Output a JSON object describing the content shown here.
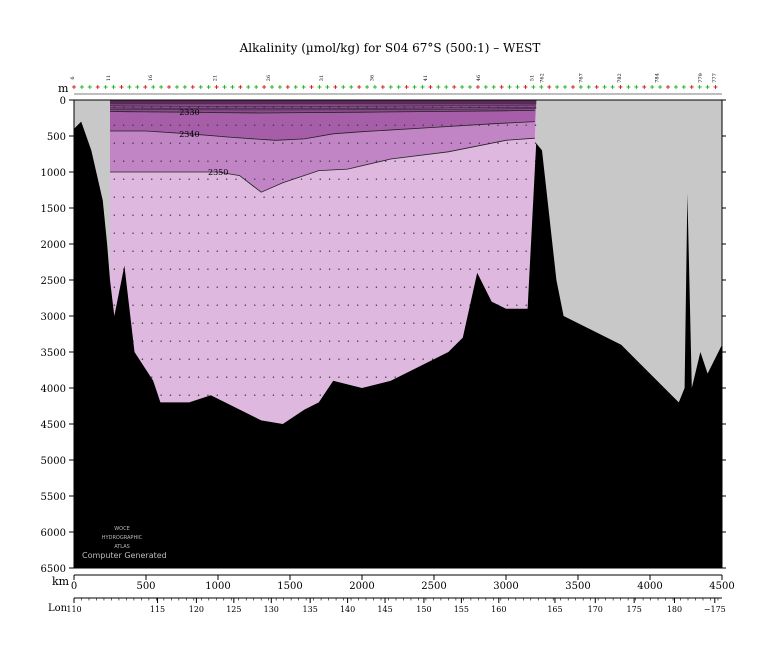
{
  "chart_data": {
    "type": "heatmap",
    "title": "Alkalinity (µmol/kg) for S04 67°S (500:1) – WEST",
    "ylabel": "m",
    "xlabel": "km",
    "lon_label": "Lon",
    "ylim": [
      6500,
      0
    ],
    "xlim": [
      0,
      4500
    ],
    "y_ticks": [
      0,
      500,
      1000,
      1500,
      2000,
      2500,
      3000,
      3500,
      4000,
      4500,
      5000,
      5500,
      6000,
      6500
    ],
    "x_ticks": [
      0,
      500,
      1000,
      1500,
      2000,
      2500,
      3000,
      3500,
      4000,
      4500
    ],
    "lon_ticks": [
      {
        "km": 0,
        "label": "110"
      },
      {
        "km": 580,
        "label": "115"
      },
      {
        "km": 850,
        "label": "120"
      },
      {
        "km": 1110,
        "label": "125"
      },
      {
        "km": 1370,
        "label": "130"
      },
      {
        "km": 1640,
        "label": "135"
      },
      {
        "km": 1900,
        "label": "140"
      },
      {
        "km": 2160,
        "label": "145"
      },
      {
        "km": 2430,
        "label": "150"
      },
      {
        "km": 2690,
        "label": "155"
      },
      {
        "km": 2950,
        "label": "160"
      },
      {
        "km": 3340,
        "label": "165"
      },
      {
        "km": 3620,
        "label": "170"
      },
      {
        "km": 3890,
        "label": "175"
      },
      {
        "km": 4170,
        "label": "180"
      },
      {
        "km": 4450,
        "label": "−175"
      }
    ],
    "station_labels": [
      {
        "km": 0,
        "label": "6"
      },
      {
        "km": 250,
        "label": "11"
      },
      {
        "km": 540,
        "label": "16"
      },
      {
        "km": 990,
        "label": "21"
      },
      {
        "km": 1360,
        "label": "26"
      },
      {
        "km": 1730,
        "label": "31"
      },
      {
        "km": 2080,
        "label": "36"
      },
      {
        "km": 2450,
        "label": "41"
      },
      {
        "km": 2820,
        "label": "46"
      },
      {
        "km": 3190,
        "label": "51"
      },
      {
        "km": 3260,
        "label": "762"
      },
      {
        "km": 3530,
        "label": "767"
      },
      {
        "km": 3800,
        "label": "782"
      },
      {
        "km": 4060,
        "label": "784"
      },
      {
        "km": 4360,
        "label": "779"
      },
      {
        "km": 4460,
        "label": "777"
      }
    ],
    "contours": [
      {
        "label": "2330",
        "depth_km": [
          [
            250,
            160
          ],
          [
            500,
            165
          ],
          [
            800,
            170
          ],
          [
            1000,
            175
          ],
          [
            1300,
            180
          ],
          [
            1600,
            175
          ],
          [
            2000,
            170
          ],
          [
            2500,
            160
          ],
          [
            3000,
            150
          ],
          [
            3200,
            145
          ]
        ]
      },
      {
        "label": "2340",
        "depth_km": [
          [
            250,
            430
          ],
          [
            500,
            430
          ],
          [
            800,
            470
          ],
          [
            1100,
            520
          ],
          [
            1400,
            560
          ],
          [
            1600,
            540
          ],
          [
            1800,
            470
          ],
          [
            2000,
            440
          ],
          [
            2500,
            380
          ],
          [
            2900,
            330
          ],
          [
            3200,
            300
          ]
        ]
      },
      {
        "label": "2350",
        "depth_km": [
          [
            250,
            1000
          ],
          [
            560,
            1000
          ],
          [
            800,
            1000
          ],
          [
            1000,
            1000
          ],
          [
            1150,
            1050
          ],
          [
            1300,
            1280
          ],
          [
            1450,
            1150
          ],
          [
            1700,
            980
          ],
          [
            1900,
            960
          ],
          [
            2200,
            820
          ],
          [
            2600,
            720
          ],
          [
            3000,
            560
          ],
          [
            3200,
            530
          ]
        ]
      }
    ],
    "color_bands": [
      {
        "range": "< 2320",
        "color": "#5a2a58"
      },
      {
        "range": "2320–2330",
        "color": "#8a4a8c"
      },
      {
        "range": "2330–2340",
        "color": "#a65ea9"
      },
      {
        "range": "2340–2350",
        "color": "#c184c4"
      },
      {
        "range": "> 2350",
        "color": "#dfb8df"
      }
    ],
    "bathymetry_km_m": [
      [
        0,
        400
      ],
      [
        50,
        300
      ],
      [
        120,
        700
      ],
      [
        200,
        1400
      ],
      [
        230,
        2000
      ],
      [
        250,
        2500
      ],
      [
        280,
        3000
      ],
      [
        350,
        2300
      ],
      [
        420,
        3500
      ],
      [
        550,
        3900
      ],
      [
        600,
        4200
      ],
      [
        800,
        4200
      ],
      [
        950,
        4100
      ],
      [
        1100,
        4250
      ],
      [
        1300,
        4450
      ],
      [
        1450,
        4500
      ],
      [
        1600,
        4300
      ],
      [
        1700,
        4200
      ],
      [
        1800,
        3900
      ],
      [
        2000,
        4000
      ],
      [
        2200,
        3900
      ],
      [
        2400,
        3700
      ],
      [
        2600,
        3500
      ],
      [
        2700,
        3300
      ],
      [
        2800,
        2400
      ],
      [
        2900,
        2800
      ],
      [
        3000,
        2900
      ],
      [
        3150,
        2900
      ],
      [
        3210,
        600
      ],
      [
        3250,
        700
      ],
      [
        3350,
        2500
      ],
      [
        3400,
        3000
      ],
      [
        3600,
        3200
      ],
      [
        3800,
        3400
      ],
      [
        4000,
        3800
      ],
      [
        4150,
        4100
      ],
      [
        4200,
        4200
      ],
      [
        4240,
        4000
      ],
      [
        4260,
        1300
      ],
      [
        4290,
        4000
      ],
      [
        4350,
        3500
      ],
      [
        4400,
        3800
      ],
      [
        4500,
        3400
      ]
    ],
    "data_extent_km": [
      250,
      3210
    ]
  },
  "colors": {
    "land": "#000000",
    "no_data": "#c8c8c8",
    "background": "#ffffff"
  },
  "watermark": {
    "line1": "WOCE",
    "line2": "HYDROGRAPHIC",
    "line3": "ATLAS",
    "caption": "Computer Generated"
  }
}
